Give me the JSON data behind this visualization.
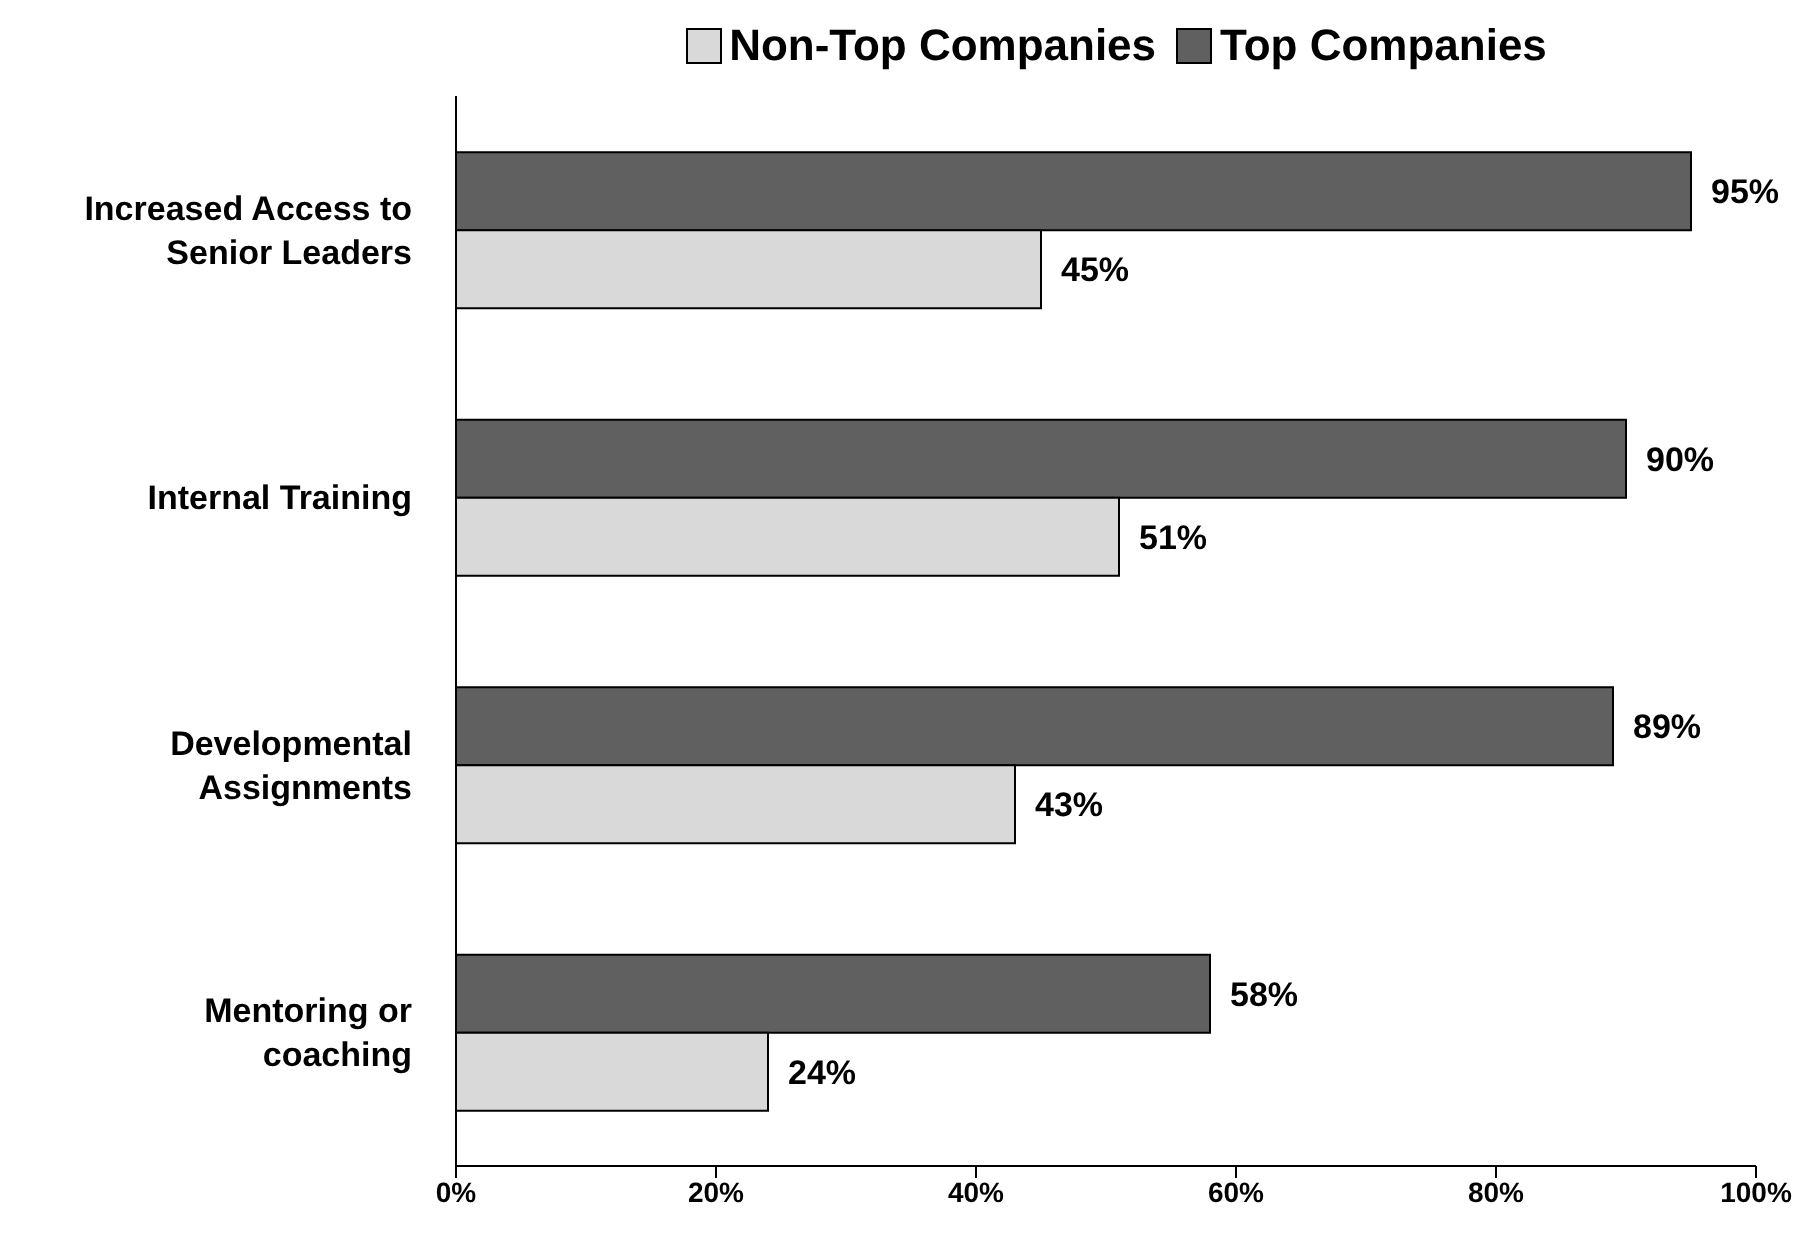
{
  "chart_data": {
    "type": "bar",
    "orientation": "horizontal",
    "categories": [
      "Increased Access to Senior Leaders",
      "Internal Training",
      "Developmental Assignments",
      "Mentoring or coaching"
    ],
    "series": [
      {
        "name": "Non-Top Companies",
        "color": "#d9d9d9",
        "values": [
          45,
          51,
          43,
          24
        ],
        "value_labels": [
          "45%",
          "51%",
          "43%",
          "24%"
        ]
      },
      {
        "name": "Top Companies",
        "color": "#606060",
        "values": [
          95,
          90,
          89,
          58
        ],
        "value_labels": [
          "95%",
          "90%",
          "89%",
          "58%"
        ]
      }
    ],
    "xlim": [
      0,
      100
    ],
    "xticks": [
      {
        "value": 0,
        "label": "0%"
      },
      {
        "value": 20,
        "label": "20%"
      },
      {
        "value": 40,
        "label": "40%"
      },
      {
        "value": 60,
        "label": "60%"
      },
      {
        "value": 80,
        "label": "80%"
      },
      {
        "value": 100,
        "label": "100%"
      }
    ],
    "legend": "top",
    "grid": false
  }
}
